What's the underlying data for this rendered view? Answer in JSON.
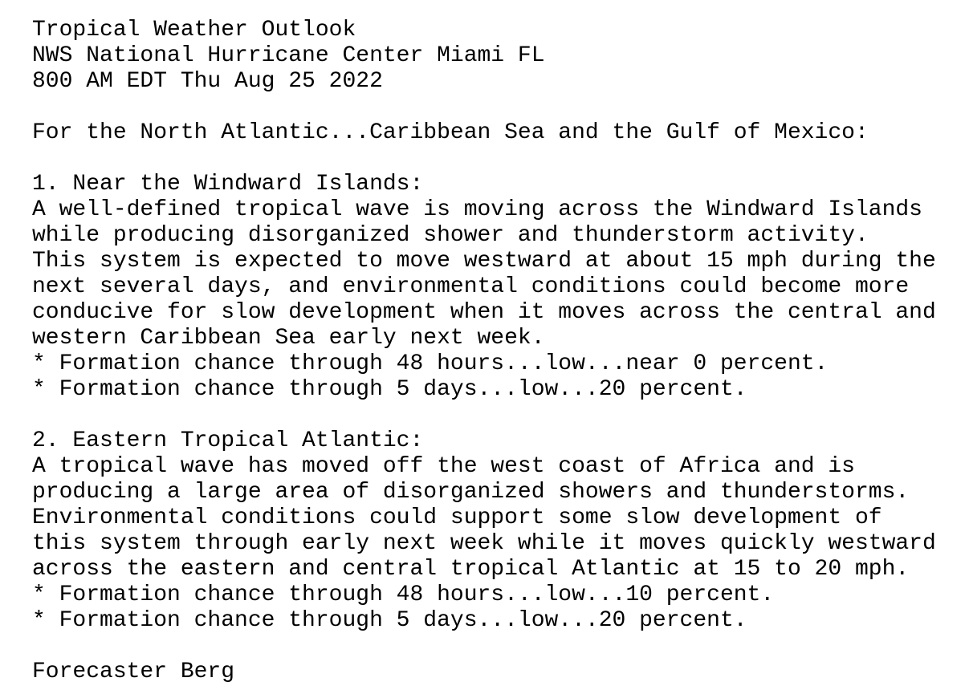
{
  "header": {
    "title": "Tropical Weather Outlook",
    "office": "NWS National Hurricane Center Miami FL",
    "issued": "800 AM EDT Thu Aug 25 2022"
  },
  "intro": "For the North Atlantic...Caribbean Sea and the Gulf of Mexico:",
  "systems": [
    {
      "title": "1. Near the Windward Islands:",
      "body": [
        "A well-defined tropical wave is moving across the Windward Islands",
        "while producing disorganized shower and thunderstorm activity.",
        "This system is expected to move westward at about 15 mph during the",
        "next several days, and environmental conditions could become more",
        "conducive for slow development when it moves across the central and",
        "western Caribbean Sea early next week."
      ],
      "chances": [
        "* Formation chance through 48 hours...low...near 0 percent.",
        "* Formation chance through 5 days...low...20 percent."
      ]
    },
    {
      "title": "2. Eastern Tropical Atlantic:",
      "body": [
        "A tropical wave has moved off the west coast of Africa and is",
        "producing a large area of disorganized showers and thunderstorms.",
        "Environmental conditions could support some slow development of",
        "this system through early next week while it moves quickly westward",
        "across the eastern and central tropical Atlantic at 15 to 20 mph."
      ],
      "chances": [
        "* Formation chance through 48 hours...low...10 percent.",
        "* Formation chance through 5 days...low...20 percent."
      ]
    }
  ],
  "footer": "Forecaster Berg"
}
